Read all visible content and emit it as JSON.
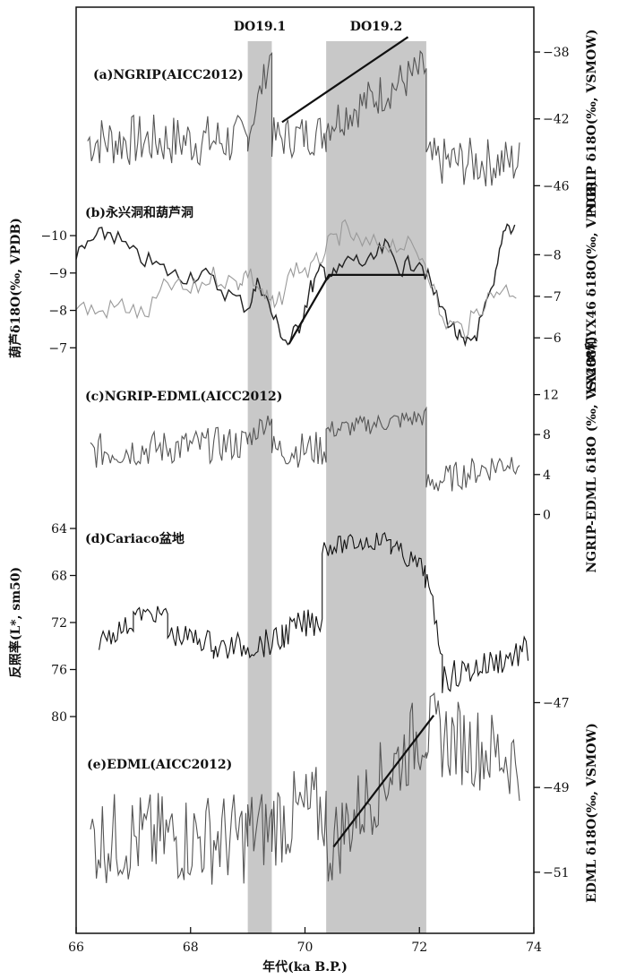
{
  "chart_data": {
    "type": "line",
    "x": {
      "label": "年代(ka B.P.)",
      "range": [
        66,
        74
      ],
      "ticks": [
        "66",
        "68",
        "70",
        "72",
        "74"
      ]
    },
    "events": [
      {
        "label": "DO19.1",
        "range": [
          69.0,
          69.42
        ]
      },
      {
        "label": "DO19.2",
        "range": [
          70.37,
          72.12
        ]
      }
    ],
    "panels": [
      {
        "id": "a",
        "title": "(a)NGRIP(AICC2012)",
        "axis_label": "NGRIP δ18O(‰, VSMOW)",
        "axis_side": "right",
        "ylim": [
          -47,
          -37.3
        ],
        "ticks": [
          "-38",
          "-42",
          "-46"
        ],
        "segments": [
          {
            "range": [
              66.2,
              69.0
            ],
            "base": -43.3,
            "slope": 0,
            "noise": 1.6
          },
          {
            "range": [
              69.0,
              69.42
            ],
            "base": -43.0,
            "slope": 12,
            "noise": 1.0
          },
          {
            "range": [
              69.42,
              70.37
            ],
            "base": -43.2,
            "slope": 0.4,
            "noise": 1.3
          },
          {
            "range": [
              70.37,
              72.12
            ],
            "base": -42.3,
            "slope": 1.9,
            "noise": 1.3
          },
          {
            "range": [
              72.12,
              73.75
            ],
            "base": -44.6,
            "slope": 0,
            "noise": 1.5
          }
        ],
        "trend": [
          [
            69.6,
            -42.2
          ],
          [
            71.8,
            -37.1
          ]
        ]
      },
      {
        "id": "b",
        "title": "(b)永兴洞和葫芦洞",
        "axis_label": "葫芦δ18O(‰, VPDB)",
        "axis_side": "left",
        "ylim": [
          -6.6,
          -10.6
        ],
        "ticks": [
          "-10",
          "-9",
          "-8",
          "-7"
        ],
        "axis2_label": "YX288和YX46 δ18O(‰, VPDB)",
        "axis2_side": "right",
        "y2lim": [
          -5.4,
          -9.0
        ],
        "ticks2": [
          "-8",
          "-7",
          "-6"
        ],
        "series": [
          {
            "name": "",
            "color": "#222222",
            "values_x": [
              66.0,
              66.3,
              66.6,
              67.0,
              67.4,
              67.8,
              68.2,
              68.6,
              69.0,
              69.2,
              69.45,
              69.7,
              69.9,
              70.1,
              70.3,
              70.5,
              70.8,
              71.1,
              71.4,
              71.7,
              72.0,
              72.3,
              72.6,
              72.8,
              73.0,
              73.3,
              73.5,
              73.7
            ],
            "values_y": [
              -9.4,
              -9.9,
              -10.1,
              -9.5,
              -9.2,
              -8.9,
              -9.0,
              -8.5,
              -8.1,
              -8.8,
              -7.8,
              -7.1,
              -7.6,
              -8.6,
              -9.1,
              -8.9,
              -9.4,
              -9.2,
              -9.7,
              -9.1,
              -9.4,
              -8.3,
              -7.5,
              -7.0,
              -7.4,
              -8.6,
              -10.3,
              -10.2
            ]
          },
          {
            "name": "",
            "color": "#999999",
            "values_x": [
              66.0,
              66.4,
              66.8,
              67.2,
              67.6,
              68.0,
              68.4,
              68.8,
              69.0,
              69.3,
              69.5,
              69.8,
              70.1,
              70.4,
              70.7,
              71.0,
              71.4,
              71.8,
              72.1,
              72.4,
              72.8,
              73.1,
              73.4,
              73.75
            ],
            "values_y": [
              -6.8,
              -6.6,
              -6.8,
              -6.5,
              -7.3,
              -7.1,
              -7.5,
              -7.3,
              -7.6,
              -7.0,
              -6.7,
              -7.7,
              -7.6,
              -8.2,
              -8.6,
              -8.2,
              -8.3,
              -8.2,
              -7.9,
              -6.4,
              -6.2,
              -6.8,
              -7.2,
              -7.1
            ]
          }
        ],
        "trend": [
          [
            69.72,
            -7.1
          ],
          [
            70.42,
            -8.95
          ],
          [
            72.1,
            -8.95
          ]
        ]
      },
      {
        "id": "c",
        "title": "(c)NGRIP-EDML(AICC2012)",
        "axis_label": "NGRIP-EDML δ18O (‰, VSMOW)",
        "axis_side": "right",
        "ylim": [
          -0.5,
          12.5
        ],
        "ticks": [
          "12",
          "8",
          "4",
          "0"
        ],
        "segments": [
          {
            "range": [
              66.25,
              69.0
            ],
            "base": 6.3,
            "slope": 0.3,
            "noise": 1.8
          },
          {
            "range": [
              69.0,
              69.42
            ],
            "base": 7.5,
            "slope": 6,
            "noise": 1.2
          },
          {
            "range": [
              69.42,
              70.37
            ],
            "base": 6.4,
            "slope": 0.2,
            "noise": 1.8
          },
          {
            "range": [
              70.37,
              72.12
            ],
            "base": 8.4,
            "slope": 0.8,
            "noise": 1.0
          },
          {
            "range": [
              72.12,
              73.75
            ],
            "base": 3.0,
            "slope": 1.6,
            "noise": 1.5
          }
        ]
      },
      {
        "id": "d",
        "title": "(d)Cariaco盆地",
        "axis_label": "反照率(L*, sm50)",
        "axis_side": "left",
        "ylim": [
          80,
          64
        ],
        "ticks": [
          "64",
          "68",
          "72",
          "76",
          "80"
        ],
        "segments": [
          {
            "range": [
              66.4,
              67.0
            ],
            "base": 73.5,
            "slope": -2.5,
            "noise": 0.9
          },
          {
            "range": [
              67.0,
              67.6
            ],
            "base": 71.3,
            "slope": 0,
            "noise": 0.7
          },
          {
            "range": [
              67.6,
              68.4
            ],
            "base": 73.0,
            "slope": 0.8,
            "noise": 1.0
          },
          {
            "range": [
              68.4,
              69.6
            ],
            "base": 74.3,
            "slope": -0.6,
            "noise": 1.2
          },
          {
            "range": [
              69.6,
              70.3
            ],
            "base": 73.0,
            "slope": -2.0,
            "noise": 1.3
          },
          {
            "range": [
              70.3,
              71.5
            ],
            "base": 65.6,
            "slope": -0.6,
            "noise": 0.8
          },
          {
            "range": [
              71.5,
              72.1
            ],
            "base": 65.5,
            "slope": 3.5,
            "noise": 0.9
          },
          {
            "range": [
              72.1,
              72.4
            ],
            "base": 68.0,
            "slope": 22,
            "noise": 1.2
          },
          {
            "range": [
              72.4,
              73.9
            ],
            "base": 76.8,
            "slope": -1.6,
            "noise": 1.3
          }
        ]
      },
      {
        "id": "e",
        "title": "(e)EDML(AICC2012)",
        "axis_label": "EDML δ18O(‰, VSMOW)",
        "axis_side": "right",
        "ylim": [
          -52.4,
          -46.8
        ],
        "ticks": [
          "-47",
          "-49",
          "-51"
        ],
        "segments": [
          {
            "range": [
              66.25,
              69.0
            ],
            "base": -50.2,
            "slope": 0,
            "noise": 1.1
          },
          {
            "range": [
              69.0,
              69.42
            ],
            "base": -50.0,
            "slope": 0,
            "noise": 1.0
          },
          {
            "range": [
              69.42,
              70.37
            ],
            "base": -49.8,
            "slope": 0.3,
            "noise": 1.1
          },
          {
            "range": [
              70.37,
              72.12
            ],
            "base": -50.5,
            "slope": 1.7,
            "noise": 1.0
          },
          {
            "range": [
              72.12,
              73.75
            ],
            "base": -47.7,
            "slope": -0.4,
            "noise": 1.0
          }
        ],
        "trend": [
          [
            70.5,
            -50.4
          ],
          [
            72.25,
            -47.3
          ]
        ]
      }
    ]
  }
}
